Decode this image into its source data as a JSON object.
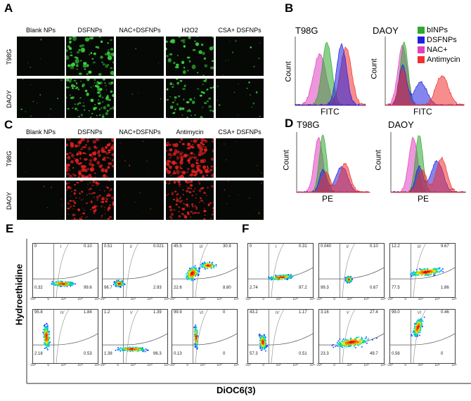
{
  "panelA": {
    "letter": "A",
    "columns": [
      "Blank NPs",
      "DSFNPs",
      "NAC+DSFNPs",
      "H2O2",
      "CSA+ DSFNPs"
    ],
    "rows": [
      "T98G",
      "DAOY"
    ],
    "stain_color": "#3cd63c"
  },
  "panelB": {
    "letter": "B",
    "plots": [
      {
        "title": "T98G",
        "xlabel": "FITC",
        "ylabel": "Count"
      },
      {
        "title": "DAOY",
        "xlabel": "FITC",
        "ylabel": "Count"
      }
    ],
    "legend": [
      {
        "label": "bINPs",
        "color": "#2ea82e"
      },
      {
        "label": "DSFNPs",
        "color": "#2020e0"
      },
      {
        "label": "NAC+",
        "color": "#e040c0"
      },
      {
        "label": "Antimycin",
        "color": "#f03030"
      }
    ]
  },
  "panelC": {
    "letter": "C",
    "columns": [
      "Blank NPs",
      "DSFNPs",
      "NAC+DSFNPs",
      "Antimycin",
      "CSA+ DSFNPs"
    ],
    "rows": [
      "T98G",
      "DAOY"
    ],
    "stain_color": "#e02020"
  },
  "panelD": {
    "letter": "D",
    "plots": [
      {
        "title": "T98G",
        "xlabel": "PE",
        "ylabel": "Count"
      },
      {
        "title": "DAOY",
        "xlabel": "PE",
        "ylabel": "Count"
      }
    ],
    "dots": "..."
  },
  "panelE": {
    "letter": "E",
    "ylabel": "Hydroethidine",
    "plots": [
      {
        "roman": "I",
        "ul": "0",
        "ur": "0.10",
        "ll": "0.32",
        "lr": "99.6"
      },
      {
        "roman": "II",
        "ul": "0.51",
        "ur": "0.021",
        "ll": "96.7",
        "lr": "2.93"
      },
      {
        "roman": "III",
        "ul": "45.5",
        "ur": "30.9",
        "ll": "22.6",
        "lr": "8.80"
      },
      {
        "roman": "IV",
        "ul": "95.8",
        "ur": "1.84",
        "ll": "2.18",
        "lr": "0.53"
      },
      {
        "roman": "V",
        "ul": "1.2",
        "ur": "1.39",
        "ll": "1.38",
        "lr": "96.3"
      },
      {
        "roman": "VI",
        "ul": "99.9",
        "ur": "0",
        "ll": "0.13",
        "lr": "0"
      }
    ]
  },
  "panelF": {
    "letter": "F",
    "plots": [
      {
        "roman": "I",
        "ul": "0",
        "ur": "0.31",
        "ll": "2.74",
        "lr": "97.2"
      },
      {
        "roman": "II",
        "ul": "0.040",
        "ur": "0.10",
        "ll": "99.3",
        "lr": "0.67"
      },
      {
        "roman": "III",
        "ul": "12.2",
        "ur": "9.67",
        "ll": "77.5",
        "lr": "1.86"
      },
      {
        "roman": "IV",
        "ul": "43.2",
        "ur": "1.17",
        "ll": "57.3",
        "lr": "0.51"
      },
      {
        "roman": "V",
        "ul": "3.16",
        "ur": "27.4",
        "ll": "23.3",
        "lr": "49.7"
      },
      {
        "roman": "VI",
        "ul": "99.0",
        "ur": "0.46",
        "ll": "0.56",
        "lr": "0"
      }
    ]
  },
  "xaxis_label": "DiOC6(3)",
  "tick_labels": [
    "-10³",
    "0",
    "10³",
    "10⁴",
    "10⁵"
  ]
}
